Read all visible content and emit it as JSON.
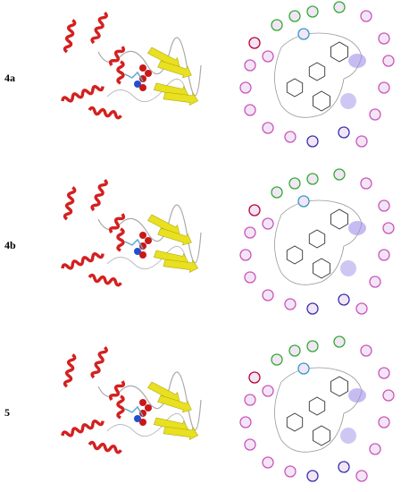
{
  "panels": [
    {
      "label": "4a"
    },
    {
      "label": "4b"
    },
    {
      "label": "5"
    }
  ]
}
